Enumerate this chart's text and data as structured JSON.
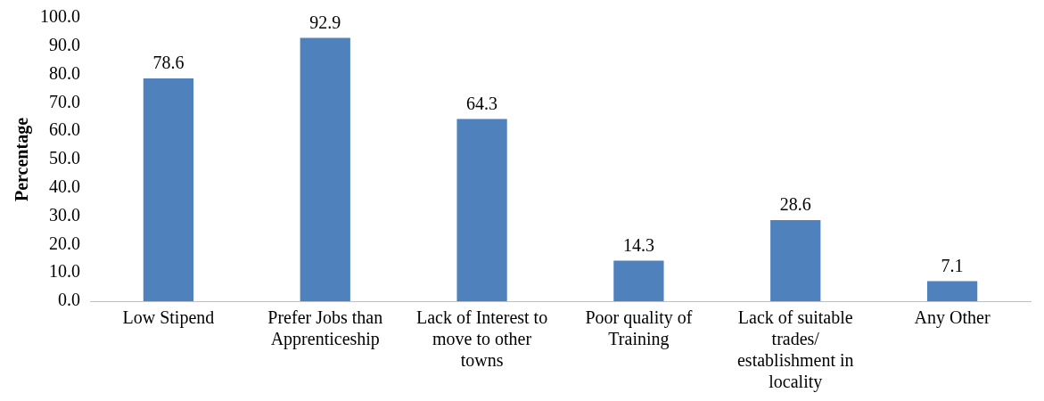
{
  "chart_data": {
    "type": "bar",
    "ylabel": "Percentage",
    "categories": [
      "Low Stipend",
      "Prefer Jobs than Apprenticeship",
      "Lack of Interest to move to other towns",
      "Poor quality of Training",
      "Lack of suitable trades/ establishment in locality",
      "Any Other"
    ],
    "values": [
      78.6,
      92.9,
      64.3,
      14.3,
      28.6,
      7.1
    ],
    "color": "#4f81bd",
    "ylim": [
      0,
      100
    ],
    "yticks": [
      {
        "value": 0,
        "label": "0.0"
      },
      {
        "value": 10,
        "label": "10.0"
      },
      {
        "value": 20,
        "label": "20.0"
      },
      {
        "value": 30,
        "label": "30.0"
      },
      {
        "value": 40,
        "label": "40.0"
      },
      {
        "value": 50,
        "label": "50.0"
      },
      {
        "value": 60,
        "label": "60.0"
      },
      {
        "value": 70,
        "label": "70.0"
      },
      {
        "value": 80,
        "label": "80.0"
      },
      {
        "value": 90,
        "label": "90.0"
      },
      {
        "value": 100,
        "label": "100.0"
      }
    ],
    "grid": false,
    "legend": false,
    "data_labels": true
  }
}
